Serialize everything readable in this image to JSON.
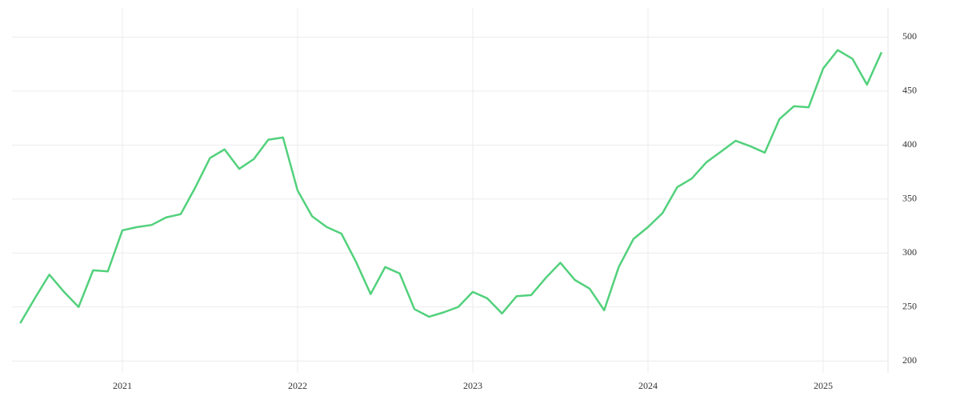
{
  "chart_data": {
    "type": "line",
    "x": [
      2020.417,
      2020.5,
      2020.583,
      2020.667,
      2020.75,
      2020.833,
      2020.917,
      2021.0,
      2021.083,
      2021.167,
      2021.25,
      2021.333,
      2021.417,
      2021.5,
      2021.583,
      2021.667,
      2021.75,
      2021.833,
      2021.917,
      2022.0,
      2022.083,
      2022.167,
      2022.25,
      2022.333,
      2022.417,
      2022.5,
      2022.583,
      2022.667,
      2022.75,
      2022.833,
      2022.917,
      2023.0,
      2023.083,
      2023.167,
      2023.25,
      2023.333,
      2023.417,
      2023.5,
      2023.583,
      2023.667,
      2023.75,
      2023.833,
      2023.917,
      2024.0,
      2024.083,
      2024.167,
      2024.25,
      2024.333,
      2024.417,
      2024.5,
      2024.583,
      2024.667,
      2024.75,
      2024.833,
      2024.917,
      2025.0,
      2025.083,
      2025.167,
      2025.25,
      2025.333
    ],
    "series": [
      {
        "color": "#52d17c",
        "values": [
          235,
          258,
          280,
          264,
          250,
          284,
          283,
          321,
          324,
          326,
          333,
          336,
          361,
          388,
          396,
          378,
          387,
          405,
          407,
          358,
          334,
          324,
          318,
          292,
          262,
          287,
          281,
          248,
          241,
          245,
          250,
          264,
          258,
          244,
          260,
          261,
          277,
          291,
          275,
          267,
          247,
          287,
          313,
          324,
          337,
          361,
          369,
          384,
          394,
          404,
          399,
          393,
          424,
          436,
          435,
          471,
          488,
          480,
          456,
          486
        ]
      }
    ],
    "xlim": [
      2020.37,
      2025.37
    ],
    "xticks": [
      2021,
      2022,
      2023,
      2024,
      2025
    ],
    "ylim": [
      192,
      527
    ],
    "yticks": [
      200,
      250,
      300,
      350,
      400,
      450,
      500
    ],
    "grid": true
  }
}
